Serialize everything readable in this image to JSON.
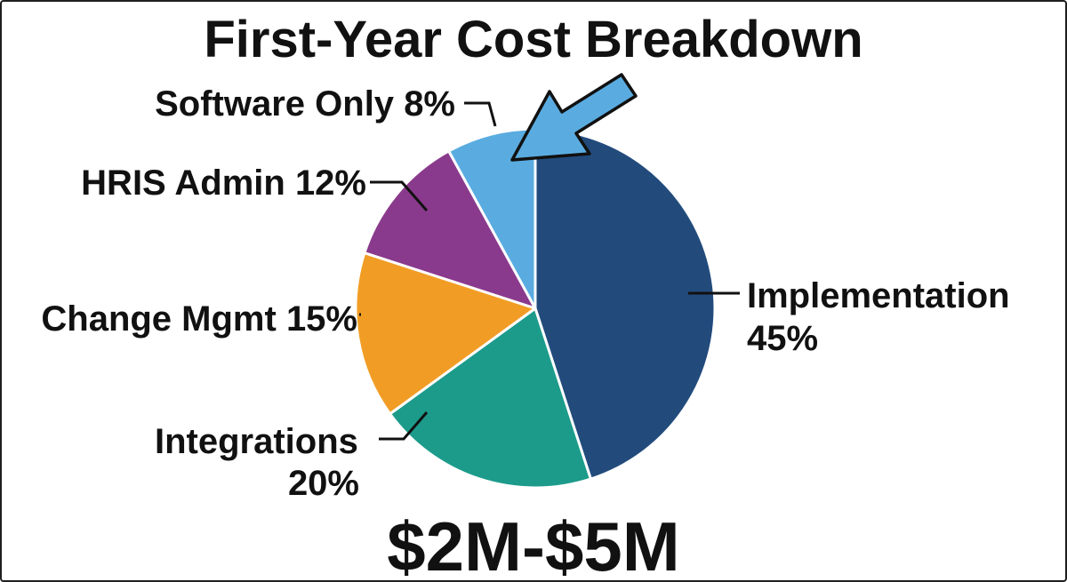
{
  "chart_data": {
    "type": "pie",
    "title": "First-Year Cost Breakdown",
    "total_label": "$2M-$5M",
    "slices": [
      {
        "label": "Implementation",
        "value_text": "45%",
        "value": 45,
        "color": "#224b7c"
      },
      {
        "label": "Integrations",
        "value_text": "20%",
        "value": 20,
        "color": "#1c9b8b"
      },
      {
        "label": "Change Mgmt",
        "value_text": "15%",
        "value": 15,
        "color": "#f19d25"
      },
      {
        "label": "HRIS Admin",
        "value_text": "12%",
        "value": 12,
        "color": "#8a3a8c"
      },
      {
        "label": "Software Only",
        "value_text": "8%",
        "value": 8,
        "color": "#5aace0"
      }
    ],
    "highlight": {
      "slice": "Software Only",
      "arrow_color": "#5aace0"
    }
  }
}
